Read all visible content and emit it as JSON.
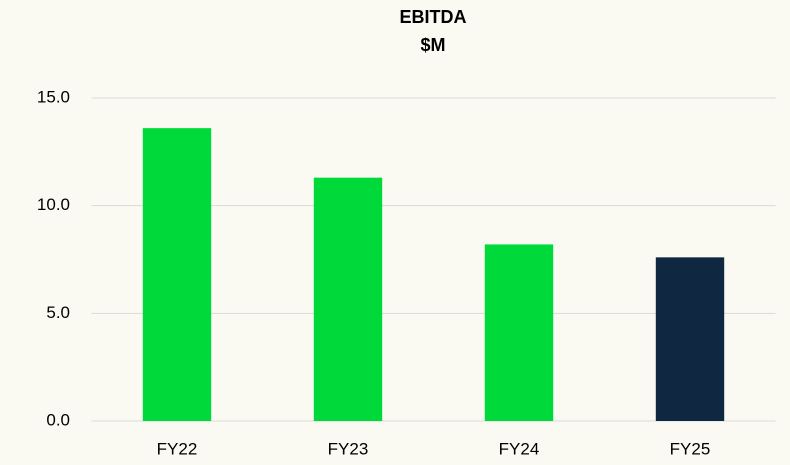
{
  "chart_data": {
    "type": "bar",
    "title": "EBITDA",
    "subtitle": "$M",
    "categories": [
      "FY22",
      "FY23",
      "FY24",
      "FY25"
    ],
    "values": [
      13.6,
      11.3,
      8.2,
      7.6
    ],
    "colors": [
      "#00d93a",
      "#00d93a",
      "#00d93a",
      "#0f2740"
    ],
    "ylim": [
      0,
      15
    ],
    "yticks": [
      {
        "value": 0,
        "label": "0.0"
      },
      {
        "value": 5,
        "label": "5.0"
      },
      {
        "value": 10,
        "label": "10.0"
      },
      {
        "value": 15,
        "label": "15.0"
      }
    ],
    "grid": true
  }
}
